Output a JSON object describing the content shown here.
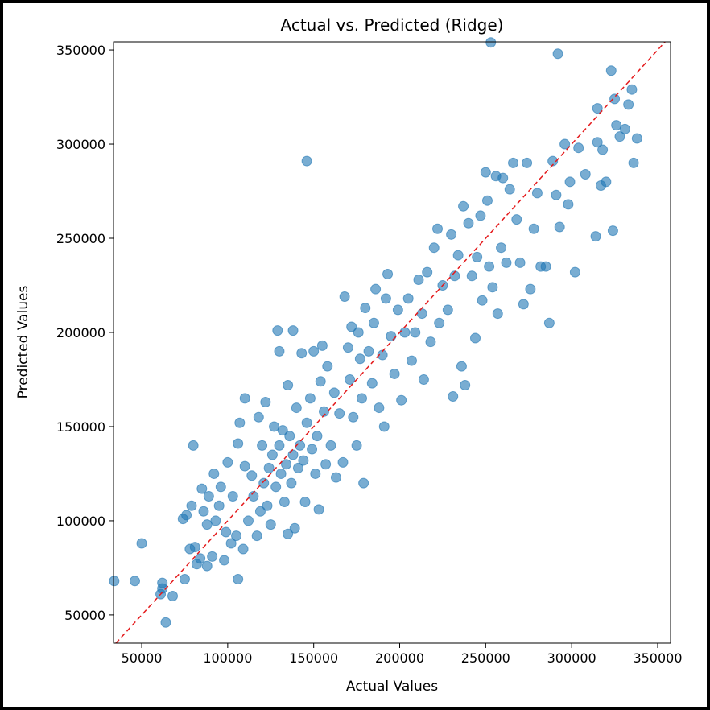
{
  "chart_data": {
    "type": "scatter",
    "title": "Actual vs. Predicted (Ridge)",
    "x_label": "Actual Values",
    "y_label": "Predicted Values",
    "color": "#1f77b4",
    "xlim": [
      33600,
      357500
    ],
    "ylim": [
      35000,
      354300
    ],
    "xticks": [
      50000,
      100000,
      150000,
      200000,
      250000,
      300000,
      350000
    ],
    "yticks": [
      50000,
      100000,
      150000,
      200000,
      250000,
      300000,
      350000
    ],
    "x": [
      34000,
      46000,
      50000,
      61000,
      62000,
      62000,
      64000,
      68000,
      75000,
      74000,
      76000,
      78000,
      79000,
      80000,
      81000,
      82000,
      84000,
      85000,
      86000,
      88000,
      88000,
      89000,
      91000,
      92000,
      93000,
      95000,
      96000,
      98000,
      99000,
      100000,
      102000,
      103000,
      105000,
      106000,
      106000,
      107000,
      109000,
      110000,
      110000,
      112000,
      114000,
      115000,
      117000,
      118000,
      119000,
      120000,
      121000,
      122000,
      123000,
      124000,
      125000,
      126000,
      127000,
      128000,
      129000,
      130000,
      130000,
      131000,
      132000,
      133000,
      134000,
      135000,
      135000,
      136000,
      137000,
      138000,
      138000,
      139000,
      140000,
      141000,
      142000,
      143000,
      144000,
      145000,
      146000,
      146000,
      148000,
      149000,
      150000,
      151000,
      152000,
      153000,
      154000,
      155000,
      156000,
      157000,
      158000,
      160000,
      162000,
      163000,
      165000,
      167000,
      168000,
      170000,
      171000,
      172000,
      173000,
      175000,
      176000,
      177000,
      178000,
      179000,
      180000,
      182000,
      184000,
      185000,
      186000,
      188000,
      190000,
      191000,
      192000,
      193000,
      195000,
      197000,
      199000,
      201000,
      203000,
      205000,
      207000,
      209000,
      211000,
      213000,
      214000,
      216000,
      218000,
      220000,
      222000,
      223000,
      225000,
      228000,
      230000,
      231000,
      232000,
      234000,
      236000,
      237000,
      238000,
      240000,
      242000,
      244000,
      245000,
      247000,
      248000,
      250000,
      251000,
      252000,
      253000,
      254000,
      256000,
      257000,
      259000,
      260000,
      262000,
      264000,
      266000,
      268000,
      270000,
      272000,
      274000,
      276000,
      278000,
      280000,
      282000,
      285000,
      287000,
      289000,
      291000,
      292000,
      293000,
      296000,
      298000,
      299000,
      302000,
      304000,
      308000,
      314000,
      315000,
      315000,
      317000,
      318000,
      320000,
      323000,
      324000,
      325000,
      326000,
      328000,
      331000,
      333000,
      335000,
      336000,
      338000
    ],
    "y": [
      68000,
      68000,
      88000,
      61000,
      64000,
      67000,
      46000,
      60000,
      69000,
      101000,
      103000,
      85000,
      108000,
      140000,
      86000,
      77000,
      80000,
      117000,
      105000,
      76000,
      98000,
      113000,
      81000,
      125000,
      100000,
      108000,
      118000,
      79000,
      94000,
      131000,
      88000,
      113000,
      92000,
      69000,
      141000,
      152000,
      85000,
      129000,
      165000,
      100000,
      124000,
      113000,
      92000,
      155000,
      105000,
      140000,
      120000,
      163000,
      108000,
      128000,
      98000,
      135000,
      150000,
      118000,
      201000,
      190000,
      140000,
      125000,
      148000,
      110000,
      130000,
      93000,
      172000,
      145000,
      120000,
      135000,
      201000,
      96000,
      160000,
      128000,
      140000,
      189000,
      132000,
      110000,
      291000,
      152000,
      165000,
      138000,
      190000,
      125000,
      145000,
      106000,
      174000,
      193000,
      158000,
      130000,
      182000,
      140000,
      168000,
      123000,
      157000,
      131000,
      219000,
      192000,
      175000,
      203000,
      155000,
      140000,
      200000,
      186000,
      165000,
      120000,
      213000,
      190000,
      173000,
      205000,
      223000,
      160000,
      188000,
      150000,
      218000,
      231000,
      198000,
      178000,
      212000,
      164000,
      200000,
      218000,
      185000,
      200000,
      228000,
      210000,
      175000,
      232000,
      195000,
      245000,
      255000,
      205000,
      225000,
      212000,
      252000,
      166000,
      230000,
      241000,
      182000,
      267000,
      172000,
      258000,
      230000,
      197000,
      240000,
      262000,
      217000,
      285000,
      270000,
      235000,
      354000,
      224000,
      283000,
      210000,
      245000,
      282000,
      237000,
      276000,
      290000,
      260000,
      237000,
      215000,
      290000,
      223000,
      255000,
      274000,
      235000,
      235000,
      205000,
      291000,
      273000,
      348000,
      256000,
      300000,
      268000,
      280000,
      232000,
      298000,
      284000,
      251000,
      319000,
      301000,
      278000,
      297000,
      280000,
      339000,
      254000,
      324000,
      310000,
      304000,
      308000,
      321000,
      329000,
      290000,
      303000
    ]
  }
}
